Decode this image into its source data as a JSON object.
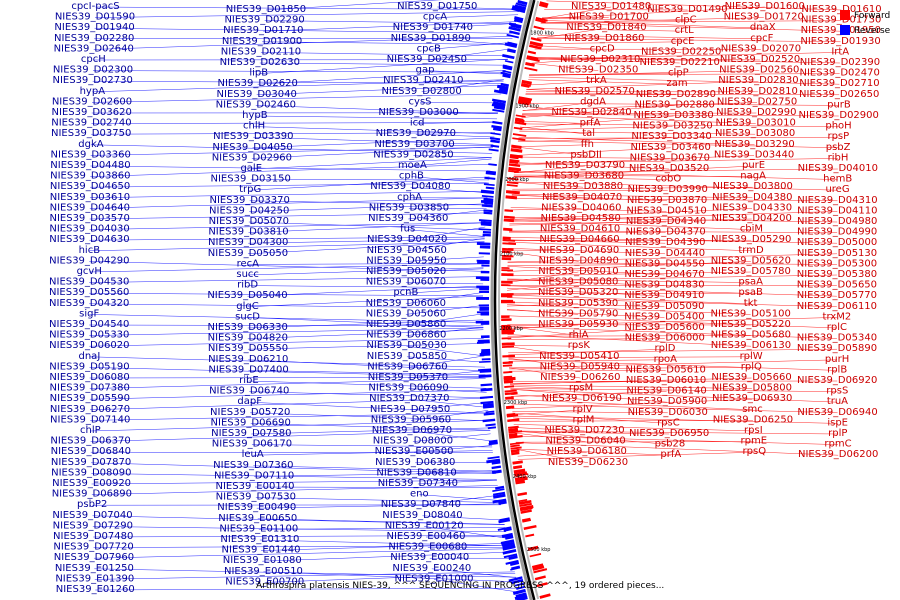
{
  "caption": "Arthrospira platensis NIES-39, ^^^ SEQUENCING IN PROGRESS ^^^, 19 ordered pieces...",
  "legend": {
    "forward_label": "Forward",
    "reverse_label": "Reverse",
    "forward_color": "#ff0000",
    "reverse_color": "#0000ff"
  },
  "ticks": [
    "1800 kbp",
    "1900 kbp",
    "2000 kbp",
    "2100 kbp",
    "2200 kbp",
    "2300 kbp",
    "2400 kbp",
    "2500 kbp"
  ],
  "reverse_labels": [
    "cpcI-pacS",
    "NIES39_D01850",
    "NIES39_D01750",
    "NIES39_D01590",
    "NIES39_D02290",
    "cpcA",
    "NIES39_D01940",
    "NIES39_D01710",
    "NIES39_D01740",
    "NIES39_D02280",
    "NIES39_D01900",
    "NIES39_D01890",
    "NIES39_D02640",
    "NIES39_D02110",
    "cpcB",
    "cpcH",
    "NIES39_D02630",
    "NIES39_D02450",
    "NIES39_D02300",
    "lipB",
    "gap",
    "NIES39_D02730",
    "NIES39_D02620",
    "NIES39_D02410",
    "hypA",
    "NIES39_D03040",
    "NIES39_D02800",
    "NIES39_D02600",
    "NIES39_D02460",
    "cysS",
    "NIES39_D03620",
    "hypB",
    "NIES39_D03000",
    "NIES39_D02740",
    "chlH",
    "icd",
    "NIES39_D03750",
    "NIES39_D03390",
    "NIES39_D02970",
    "dgkA",
    "NIES39_D04050",
    "NIES39_D03700",
    "NIES39_D03360",
    "NIES39_D02960",
    "NIES39_D02850",
    "NIES39_D04480",
    "galE",
    "moeA",
    "NIES39_D03860",
    "NIES39_D03150",
    "cphB",
    "NIES39_D04650",
    "trpG",
    "NIES39_D04080",
    "NIES39_D03610",
    "NIES39_D03370",
    "cphA",
    "NIES39_D04640",
    "NIES39_D04250",
    "NIES39_D03850",
    "NIES39_D03570",
    "NIES39_D05070",
    "NIES39_D04360",
    "NIES39_D04030",
    "NIES39_D03810",
    "fus",
    "NIES39_D04630",
    "NIES39_D04300",
    "NIES39_D04020",
    "hicB",
    "NIES39_D05050",
    "NIES39_D04560",
    "NIES39_D04290",
    "recA",
    "NIES39_D05950",
    "gcvH",
    "succ",
    "NIES39_D05020",
    "NIES39_D04530",
    "ribD",
    "NIES39_D06070",
    "NIES39_D05560",
    "NIES39_D05040",
    "pcnB",
    "NIES39_D04320",
    "glgC",
    "NIES39_D06060",
    "sigF",
    "sucD",
    "NIES39_D05060",
    "NIES39_D04540",
    "NIES39_D06330",
    "NIES39_D05860",
    "NIES39_D05330",
    "NIES39_D04820",
    "NIES39_D06860",
    "NIES39_D06020",
    "NIES39_D05550",
    "NIES39_D05030",
    "dnaJ",
    "NIES39_D06210",
    "NIES39_D05850",
    "NIES39_D05190",
    "NIES39_D07400",
    "NIES39_D06760",
    "NIES39_D06080",
    "ribE",
    "NIES39_D05370",
    "NIES39_D07380",
    "NIES39_D06740",
    "NIES39_D06090",
    "NIES39_D05590",
    "dapF",
    "NIES39_D07370",
    "NIES39_D06270",
    "NIES39_D05720",
    "NIES39_D07950",
    "NIES39_D07140",
    "NIES39_D06690",
    "NIES39_D05960",
    "chlP",
    "NIES39_D07580",
    "NIES39_D06970",
    "NIES39_D06370",
    "NIES39_D06170",
    "NIES39_D08000",
    "NIES39_D06840",
    "leuA",
    "NIES39_E00500",
    "NIES39_D07870",
    "NIES39_D07360",
    "NIES39_D06380",
    "NIES39_D08090",
    "NIES39_D07110",
    "NIES39_D06810",
    "NIES39_E00920",
    "NIES39_E00140",
    "NIES39_D07340",
    "NIES39_D06890",
    "NIES39_D07530",
    "eno",
    "psbP2",
    "NIES39_E00490",
    "NIES39_D07840",
    "NIES39_D07040",
    "NIES39_E00650",
    "NIES39_D08040",
    "NIES39_D07290",
    "NIES39_E01100",
    "NIES39_E00120",
    "NIES39_D07480",
    "NIES39_E01310",
    "NIES39_E00460",
    "NIES39_D07720",
    "NIES39_E01440",
    "NIES39_E00680",
    "NIES39_D07960",
    "NIES39_E01080",
    "NIES39_E00040",
    "NIES39_E01250",
    "NIES39_E00510",
    "NIES39_E00240",
    "NIES39_E01390",
    "NIES39_E00700",
    "NIES39_E01000",
    "NIES39_E01260"
  ],
  "forward_labels": [
    "NIES39_D01480",
    "NIES39_D01490",
    "NIES39_D01600",
    "NIES39_D01610",
    "NIES39_D01700",
    "clpC",
    "NIES39_D01720",
    "NIES39_D01730",
    "NIES39_D01840",
    "crtL",
    "dnaX",
    "NIES39_D01950",
    "NIES39_D01860",
    "cpcE",
    "cpcF",
    "NIES39_D01930",
    "cpcD",
    "NIES39_D02250",
    "NIES39_D02070",
    "IrtA",
    "NIES39_D02310",
    "NIES39_D02210",
    "NIES39_D02520",
    "NIES39_D02390",
    "NIES39_D02350",
    "clpP",
    "NIES39_D02560",
    "NIES39_D02470",
    "trkA",
    "zam",
    "NIES39_D02830",
    "NIES39_D02710",
    "NIES39_D02570",
    "NIES39_D02890",
    "NIES39_D02810",
    "NIES39_D02650",
    "dgdA",
    "NIES39_D02880",
    "NIES39_D02750",
    "purB",
    "NIES39_D02840",
    "NIES39_D03380",
    "NIES39_D02990",
    "NIES39_D02900",
    "prfA",
    "NIES39_D03250",
    "NIES39_D03010",
    "phoH",
    "tal",
    "NIES39_D03340",
    "NIES39_D03080",
    "rpsP",
    "ffh",
    "NIES39_D03460",
    "NIES39_D03290",
    "psbZ",
    "psbDII",
    "NIES39_D03670",
    "NIES39_D03440",
    "ribH",
    "NIES39_D03790",
    "NIES39_D03520",
    "purE",
    "NIES39_D04010",
    "NIES39_D03680",
    "cobO",
    "nagA",
    "hemB",
    "NIES39_D03880",
    "NIES39_D03990",
    "NIES39_D03800",
    "ureG",
    "NIES39_D04070",
    "NIES39_D03870",
    "NIES39_D04380",
    "NIES39_D04310",
    "NIES39_D04060",
    "NIES39_D04510",
    "NIES39_D04330",
    "NIES39_D04110",
    "NIES39_D04580",
    "NIES39_D04340",
    "NIES39_D04200",
    "NIES39_D04980",
    "NIES39_D04610",
    "NIES39_D04370",
    "cbiM",
    "NIES39_D04990",
    "NIES39_D04660",
    "NIES39_D04390",
    "NIES39_D05290",
    "NIES39_D05000",
    "NIES39_D04690",
    "NIES39_D04440",
    "trmD",
    "NIES39_D05130",
    "NIES39_D04890",
    "NIES39_D04550",
    "NIES39_D05620",
    "NIES39_D05300",
    "NIES39_D05010",
    "NIES39_D04670",
    "NIES39_D05780",
    "NIES39_D05380",
    "NIES39_D05080",
    "NIES39_D04830",
    "psaA",
    "NIES39_D05650",
    "NIES39_D05320",
    "NIES39_D04910",
    "psaB",
    "NIES39_D05770",
    "NIES39_D05390",
    "NIES39_D05090",
    "tkt",
    "NIES39_D06110",
    "NIES39_D05790",
    "NIES39_D05400",
    "NIES39_D05100",
    "trxM2",
    "NIES39_D05930",
    "NIES39_D05600",
    "NIES39_D05220",
    "rplC",
    "rhlA",
    "NIES39_D06000",
    "NIES39_D05680",
    "NIES39_D05340",
    "rpsK",
    "rplD",
    "NIES39_D06130",
    "NIES39_D05890",
    "NIES39_D05410",
    "rpoA",
    "rplW",
    "purH",
    "NIES39_D05940",
    "NIES39_D05610",
    "rplQ",
    "rplB",
    "NIES39_D06260",
    "NIES39_D06010",
    "NIES39_D05660",
    "NIES39_D06920",
    "rpsM",
    "NIES39_D06140",
    "NIES39_D05800",
    "rpsS",
    "NIES39_D06190",
    "NIES39_D05900",
    "NIES39_D06930",
    "truA",
    "rplV",
    "NIES39_D06030",
    "smc",
    "NIES39_D06940",
    "rplM",
    "rpsC",
    "NIES39_D06250",
    "ispE",
    "NIES39_D07230",
    "NIES39_D06950",
    "rpsI",
    "rplP",
    "NIES39_D06040",
    "psb28",
    "rpmE",
    "rpmC",
    "NIES39_D06180",
    "prfA",
    "rpsQ",
    "NIES39_D06200",
    "NIES39_D06230"
  ]
}
